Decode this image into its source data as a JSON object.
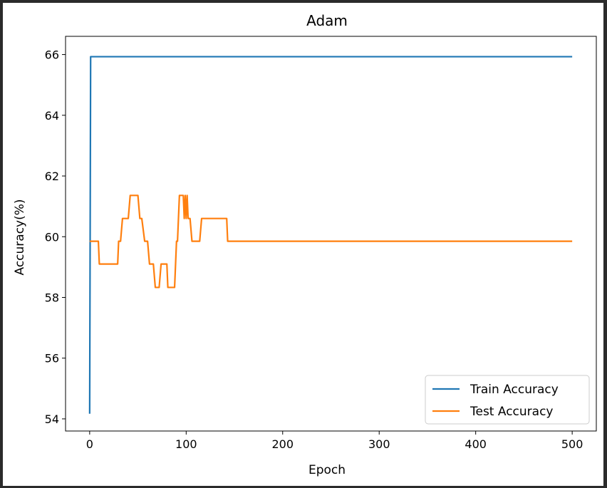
{
  "colors": {
    "train": "#1f77b4",
    "test": "#ff7f0e",
    "axis": "#000000",
    "legend_border": "#cccccc"
  },
  "chart_data": {
    "type": "line",
    "title": "Adam",
    "xlabel": "Epoch",
    "ylabel": "Accuracy(%)",
    "xlim": [
      -25,
      525
    ],
    "ylim": [
      53.6,
      66.6
    ],
    "xticks": [
      0,
      100,
      200,
      300,
      400,
      500
    ],
    "yticks": [
      54,
      56,
      58,
      60,
      62,
      64,
      66
    ],
    "grid": false,
    "legend": "bottom-right",
    "series": [
      {
        "name": "Train Accuracy",
        "color": "#1f77b4",
        "points": [
          [
            0,
            54.17
          ],
          [
            1,
            65.93
          ],
          [
            500,
            65.93
          ]
        ]
      },
      {
        "name": "Test Accuracy",
        "color": "#ff7f0e",
        "points": [
          [
            0,
            59.85
          ],
          [
            9,
            59.85
          ],
          [
            10,
            59.1
          ],
          [
            29,
            59.1
          ],
          [
            30,
            59.85
          ],
          [
            32,
            59.85
          ],
          [
            34,
            60.6
          ],
          [
            40,
            60.6
          ],
          [
            42,
            61.36
          ],
          [
            50,
            61.36
          ],
          [
            52,
            60.6
          ],
          [
            54,
            60.6
          ],
          [
            57,
            59.85
          ],
          [
            60,
            59.85
          ],
          [
            62,
            59.1
          ],
          [
            66,
            59.1
          ],
          [
            68,
            58.33
          ],
          [
            72,
            58.33
          ],
          [
            74,
            59.1
          ],
          [
            80,
            59.1
          ],
          [
            81,
            58.33
          ],
          [
            88,
            58.33
          ],
          [
            90,
            59.85
          ],
          [
            91,
            59.85
          ],
          [
            93,
            61.36
          ],
          [
            97,
            61.36
          ],
          [
            98,
            60.6
          ],
          [
            99,
            61.36
          ],
          [
            100,
            60.6
          ],
          [
            101,
            61.36
          ],
          [
            102,
            60.6
          ],
          [
            104,
            60.6
          ],
          [
            106,
            59.85
          ],
          [
            114,
            59.85
          ],
          [
            116,
            60.6
          ],
          [
            142,
            60.6
          ],
          [
            143,
            59.85
          ],
          [
            500,
            59.85
          ]
        ]
      }
    ]
  }
}
